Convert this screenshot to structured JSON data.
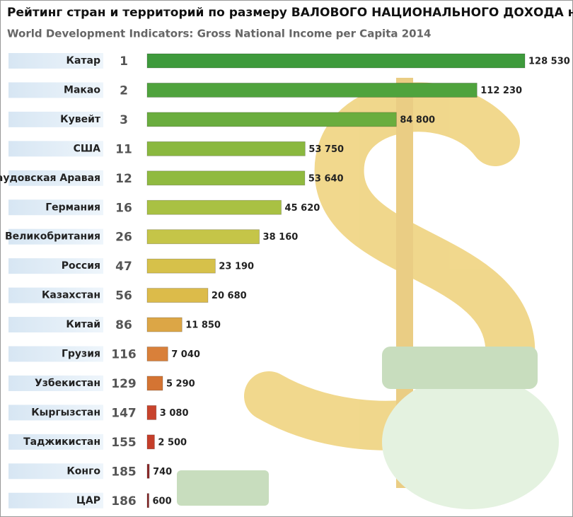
{
  "chart_data": {
    "type": "bar",
    "title": "Рейтинг стран и территорий по размеру ВАЛОВОГО НАЦИОНАЛЬНОГО ДОХОДА на душу населения",
    "subtitle": "World Development Indicators: Gross National Income per Capita 2014",
    "categories": [
      "Катар",
      "Макао",
      "Кувейт",
      "США",
      "Саудовская Аравая",
      "Германия",
      "Великобритания",
      "Россия",
      "Казахстан",
      "Китай",
      "Грузия",
      "Узбекистан",
      "Кыргызстан",
      "Таджикистан",
      "Конго",
      "ЦАР"
    ],
    "ranks": [
      1,
      2,
      3,
      11,
      12,
      16,
      26,
      47,
      56,
      86,
      116,
      129,
      147,
      155,
      185,
      186
    ],
    "values": [
      128530,
      112230,
      84800,
      53750,
      53640,
      45620,
      38160,
      23190,
      20680,
      11850,
      7040,
      5290,
      3080,
      2500,
      740,
      600
    ],
    "value_labels": [
      "128 530",
      "112 230",
      "84 800",
      "53 750",
      "53 640",
      "45 620",
      "38 160",
      "23 190",
      "20 680",
      "11 850",
      "7 040",
      "5 290",
      "3 080",
      "2 500",
      "740",
      "600"
    ],
    "colors": [
      "#3e9a3c",
      "#4fa33d",
      "#6aad3e",
      "#8ab83f",
      "#90ba40",
      "#a9c143",
      "#c5c548",
      "#d6c14a",
      "#dcbb4a",
      "#dca646",
      "#d9803a",
      "#d47433",
      "#c8432c",
      "#c53e2a",
      "#8e2a2a",
      "#862828"
    ]
  }
}
